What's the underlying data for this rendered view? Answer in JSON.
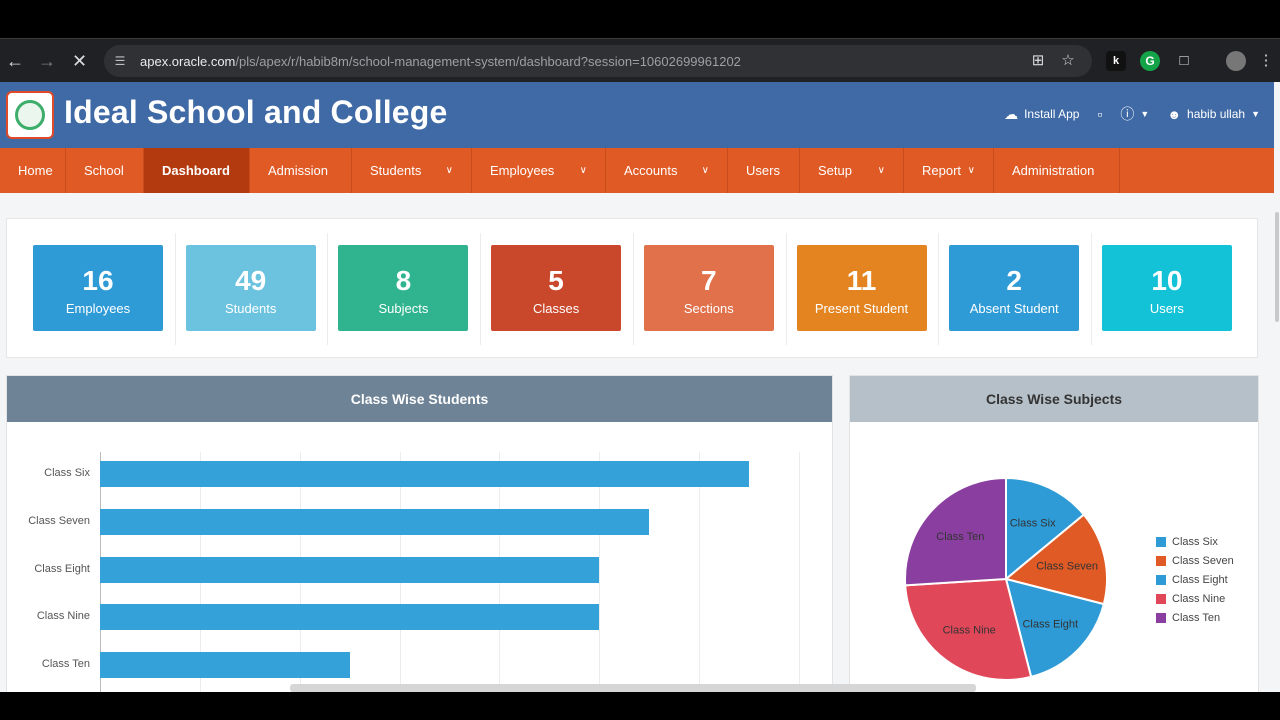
{
  "browser": {
    "url_host": "apex.oracle.com",
    "url_path": "/pls/apex/r/habib8m/school-management-system/dashboard?session=10602699961202",
    "icons": [
      "back-icon",
      "forward-icon",
      "stop-icon",
      "site-info-icon",
      "install-icon",
      "star-icon",
      "extension-icon",
      "grammarly-icon",
      "puzzle-icon",
      "profile-icon",
      "menu-icon"
    ]
  },
  "header": {
    "title": "Ideal School and College",
    "install_app": "Install App",
    "user": "habib ullah"
  },
  "menu": [
    {
      "label": "Home",
      "active": false,
      "dropdown": false
    },
    {
      "label": "School",
      "active": false,
      "dropdown": false
    },
    {
      "label": "Dashboard",
      "active": true,
      "dropdown": false
    },
    {
      "label": "Admission",
      "active": false,
      "dropdown": false
    },
    {
      "label": "Students",
      "active": false,
      "dropdown": true
    },
    {
      "label": "Employees",
      "active": false,
      "dropdown": true
    },
    {
      "label": "Accounts",
      "active": false,
      "dropdown": true
    },
    {
      "label": "Users",
      "active": false,
      "dropdown": false
    },
    {
      "label": "Setup",
      "active": false,
      "dropdown": true
    },
    {
      "label": "Report",
      "active": false,
      "dropdown": true
    },
    {
      "label": "Administration",
      "active": false,
      "dropdown": false
    }
  ],
  "stats": [
    {
      "value": "16",
      "label": "Employees",
      "color": "#2e9bd6"
    },
    {
      "value": "49",
      "label": "Students",
      "color": "#6cc3e0"
    },
    {
      "value": "8",
      "label": "Subjects",
      "color": "#2fb48f"
    },
    {
      "value": "5",
      "label": "Classes",
      "color": "#c9472a"
    },
    {
      "value": "7",
      "label": "Sections",
      "color": "#e0714a"
    },
    {
      "value": "11",
      "label": "Present Student",
      "color": "#e38421"
    },
    {
      "value": "2",
      "label": "Absent Student",
      "color": "#2e9bd6"
    },
    {
      "value": "10",
      "label": "Users",
      "color": "#14c2d8"
    }
  ],
  "bar_panel": {
    "title": "Class Wise Students",
    "head_color": "#6f8396"
  },
  "pie_panel": {
    "title": "Class Wise Subjects",
    "head_color": "#b6c0c8"
  },
  "chart_data": [
    {
      "type": "bar",
      "orientation": "horizontal",
      "categories": [
        "Class Six",
        "Class Seven",
        "Class Eight",
        "Class Nine",
        "Class Ten"
      ],
      "values": [
        13,
        11,
        10,
        10,
        5
      ],
      "xlim": [
        0,
        14
      ],
      "grid": true,
      "color": "#34a1d9"
    },
    {
      "type": "pie",
      "categories": [
        "Class Six",
        "Class Seven",
        "Class Eight",
        "Class Nine",
        "Class Ten"
      ],
      "values": [
        14,
        15,
        17,
        28,
        26
      ],
      "colors": [
        "#2e9bd6",
        "#e05a25",
        "#2e9bd6",
        "#e0485a",
        "#8a3fa0"
      ],
      "legend": "right"
    }
  ]
}
